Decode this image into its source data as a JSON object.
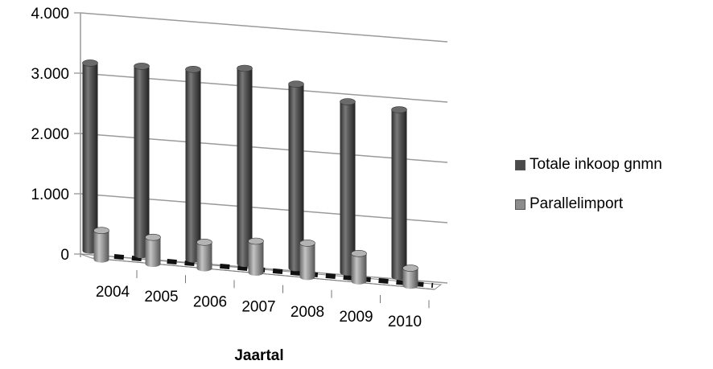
{
  "chart_data": {
    "type": "bar",
    "categories": [
      "2004",
      "2005",
      "2006",
      "2007",
      "2008",
      "2009",
      "2010"
    ],
    "series": [
      {
        "name": "Totale inkoop gnmn",
        "values": [
          3110,
          3130,
          3150,
          3240,
          3050,
          2830,
          2770
        ],
        "color": "#4a4a4a"
      },
      {
        "name": "Parallelimport",
        "values": [
          480,
          440,
          430,
          520,
          560,
          460,
          290
        ],
        "color": "#8c8c8c"
      }
    ],
    "y_ticks": [
      "0",
      "1.000",
      "2.000",
      "3.000",
      "4.000"
    ],
    "ylim": [
      0,
      4000
    ],
    "xlabel": "Jaartal",
    "ylabel": "",
    "grid": true,
    "legend_position": "right",
    "style": "3d-cylinder"
  }
}
